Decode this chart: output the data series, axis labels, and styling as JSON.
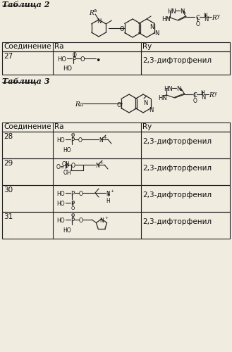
{
  "title2": "Таблица 2",
  "title3": "Таблица 3",
  "bg_color": "#f0ece0",
  "line_color": "#222222",
  "text_color": "#111111",
  "font_size": 7.5,
  "header_font_size": 7.5,
  "table2_compound": "27",
  "table3_compounds": [
    "28",
    "29",
    "30",
    "31"
  ],
  "ry_text": "2,3-дифторфенил",
  "col_headers": [
    "Соединение",
    "Rа",
    "Rу"
  ]
}
